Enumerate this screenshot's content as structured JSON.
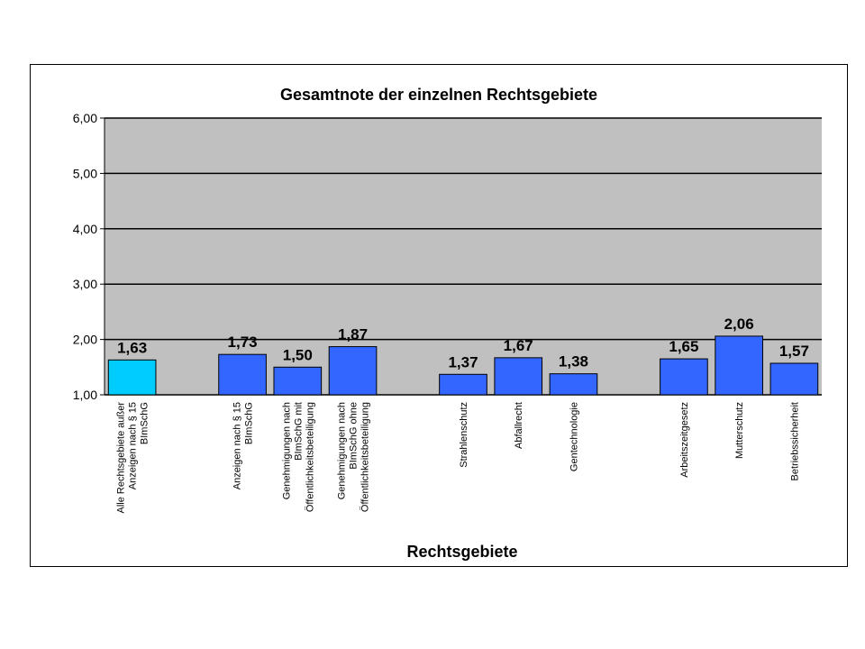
{
  "chart_data": {
    "type": "bar",
    "title": "Gesamtnote der einzelnen Rechtsgebiete",
    "xlabel": "Rechtsgebiete",
    "ylabel": "",
    "ylim": [
      1.0,
      6.0
    ],
    "yticks": [
      "1,00",
      "2,00",
      "3,00",
      "4,00",
      "5,00",
      "6,00"
    ],
    "grid": true,
    "legend": "none",
    "colors": {
      "plot_background": "#c0c0c0",
      "highlight_bar": "#00ccff",
      "bar": "#3366ff",
      "bar_border": "#000000",
      "gridline": "#000000"
    },
    "bars": [
      {
        "lines": [
          "Alle Rechtsgebiete außer",
          "Anzeigen nach § 15",
          "BImSchG"
        ],
        "value": 1.63,
        "label": "1,63",
        "highlight": true
      },
      {
        "lines": [],
        "value": null,
        "label": "",
        "highlight": false
      },
      {
        "lines": [
          "Anzeigen nach § 15",
          "BImSchG"
        ],
        "value": 1.73,
        "label": "1,73",
        "highlight": false
      },
      {
        "lines": [
          "Genehmigungen nach",
          "BImSchG mit",
          "Öffentlichkeitsbeteiligung"
        ],
        "value": 1.5,
        "label": "1,50",
        "highlight": false
      },
      {
        "lines": [
          "Genehmigungen nach",
          "BImSchG ohne",
          "Öffentlichkeitsbeteiligung"
        ],
        "value": 1.87,
        "label": "1,87",
        "highlight": false
      },
      {
        "lines": [],
        "value": null,
        "label": "",
        "highlight": false
      },
      {
        "lines": [
          "Strahlenschutz"
        ],
        "value": 1.37,
        "label": "1,37",
        "highlight": false
      },
      {
        "lines": [
          "Abfallrecht"
        ],
        "value": 1.67,
        "label": "1,67",
        "highlight": false
      },
      {
        "lines": [
          "Gentechnologie"
        ],
        "value": 1.38,
        "label": "1,38",
        "highlight": false
      },
      {
        "lines": [],
        "value": null,
        "label": "",
        "highlight": false
      },
      {
        "lines": [
          "Arbeitszeitgesetz"
        ],
        "value": 1.65,
        "label": "1,65",
        "highlight": false
      },
      {
        "lines": [
          "Mutterschutz"
        ],
        "value": 2.06,
        "label": "2,06",
        "highlight": false
      },
      {
        "lines": [
          "Betriebssicherheit"
        ],
        "value": 1.57,
        "label": "1,57",
        "highlight": false
      }
    ]
  }
}
